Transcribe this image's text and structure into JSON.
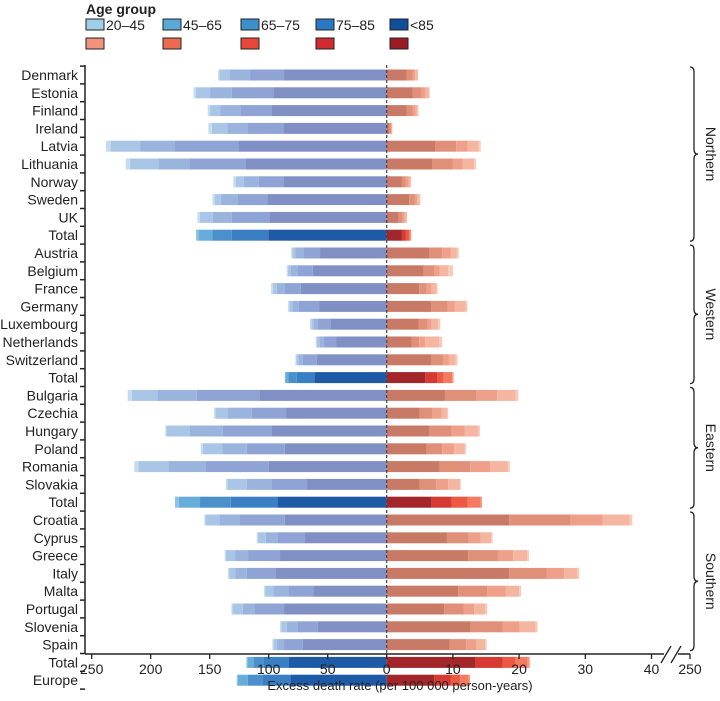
{
  "chart_data": {
    "type": "bar",
    "orientation": "horizontal-diverging-stacked",
    "legend": {
      "title": "Age group",
      "placement": "top-left",
      "entries": [
        "20–45",
        "45–65",
        "65–75",
        "75–85",
        "<85"
      ],
      "colors_blue": [
        "#9fcfe8",
        "#5aa8d8",
        "#3d8fcc",
        "#2a78c4",
        "#0d4f9b"
      ],
      "colors_red": [
        "#f1927a",
        "#ec6b50",
        "#e8473a",
        "#d22b2f",
        "#9b1c22"
      ]
    },
    "colors": {
      "left_country": [
        "#c4dcef",
        "#a9c6e6",
        "#9bb4dd",
        "#8fa4d4",
        "#8190c4"
      ],
      "left_total": [
        "#8cc3e6",
        "#68acd9",
        "#4b90ca",
        "#3a7fc4",
        "#1f5aa6"
      ],
      "right_country": [
        "#f7cbbb",
        "#f4b5a1",
        "#eea08a",
        "#e08f79",
        "#c97a66"
      ],
      "right_total": [
        "#f49a80",
        "#f27b62",
        "#ec5a44",
        "#d53a33",
        "#a3262a"
      ]
    },
    "segment_order": [
      "20–45",
      "45–65",
      "65–75",
      "75–85",
      "<85"
    ],
    "xlabel": "Excess death rate (per 100 000 person-years)",
    "left_axis": {
      "ticks": [
        250,
        200,
        150,
        100,
        50,
        0
      ],
      "xlim": [
        250,
        0
      ]
    },
    "right_axis": {
      "ticks": [
        0,
        10,
        20,
        30,
        40
      ],
      "xlim": [
        0,
        40
      ],
      "break_tick": 250
    },
    "grid": false,
    "groups": [
      {
        "name": "Northern",
        "from": 0,
        "to": 9
      },
      {
        "name": "Western",
        "from": 10,
        "to": 17
      },
      {
        "name": "Eastern",
        "from": 18,
        "to": 24
      },
      {
        "name": "Southern",
        "from": 25,
        "to": 32
      }
    ],
    "rows": [
      {
        "label": "Denmark",
        "total": false,
        "left": [
          1,
          9,
          17,
          28.8,
          87
        ],
        "right": [
          0.05,
          0.4,
          0.4,
          0.9,
          3.0
        ]
      },
      {
        "label": "Estonia",
        "total": false,
        "left": [
          2,
          12,
          18.3,
          35.4,
          96
        ],
        "right": [
          0.1,
          0.5,
          0.6,
          1.4,
          3.9
        ]
      },
      {
        "label": "Finland",
        "total": false,
        "left": [
          2,
          8.5,
          17,
          27,
          97.2
        ],
        "right": [
          0.1,
          0.3,
          0.5,
          0.9,
          3.0
        ]
      },
      {
        "label": "Ireland",
        "total": false,
        "left": [
          3,
          13,
          17,
          30.5,
          87.6
        ],
        "right": [
          0,
          0.1,
          0.1,
          0.25,
          0.4
        ]
      },
      {
        "label": "Latvia",
        "total": false,
        "left": [
          4,
          25,
          29.6,
          53.7,
          125.7
        ],
        "right": [
          0.3,
          1.7,
          1.7,
          3.2,
          7.3
        ]
      },
      {
        "label": "Lithuania",
        "total": false,
        "left": [
          3.7,
          24,
          26.3,
          47.4,
          119.8
        ],
        "right": [
          0.3,
          1.7,
          1.5,
          3.1,
          6.9
        ]
      },
      {
        "label": "Norway",
        "total": false,
        "left": [
          2,
          7,
          12.2,
          21.2,
          87.6
        ],
        "right": [
          0.1,
          0.3,
          0.4,
          0.6,
          2.3
        ]
      },
      {
        "label": "Sweden",
        "total": false,
        "left": [
          2,
          5,
          14,
          25.5,
          101.1
        ],
        "right": [
          0.1,
          0.4,
          0.4,
          0.8,
          3.4
        ]
      },
      {
        "label": "UK",
        "total": false,
        "left": [
          2,
          11,
          16,
          32,
          99.4
        ],
        "right": [
          0.1,
          0.3,
          0.3,
          0.6,
          1.8
        ]
      },
      {
        "label": "Total",
        "total": true,
        "left": [
          2,
          11.9,
          16.3,
          31.1,
          100.3
        ],
        "right": [
          0.05,
          0.25,
          0.5,
          0.6,
          2.3
        ]
      },
      {
        "label": "Austria",
        "total": false,
        "left": [
          1,
          2.4,
          7,
          14.1,
          56.5
        ],
        "right": [
          0.3,
          0.9,
          1.3,
          1.9,
          6.5
        ]
      },
      {
        "label": "Belgium",
        "total": false,
        "left": [
          1,
          2.3,
          5.7,
          13,
          62.7
        ],
        "right": [
          0.7,
          1.3,
          0.8,
          1.6,
          5.6
        ]
      },
      {
        "label": "France",
        "total": false,
        "left": [
          1.5,
          3.3,
          7,
          13.3,
          72.9
        ],
        "right": [
          0.2,
          0.7,
          0.8,
          1.1,
          4.9
        ]
      },
      {
        "label": "Germany",
        "total": false,
        "left": [
          1,
          2.7,
          5,
          17.6,
          57.3
        ],
        "right": [
          0.3,
          1.6,
          1.1,
          2.5,
          6.7
        ]
      },
      {
        "label": "Luxembourg",
        "total": false,
        "left": [
          1,
          1.9,
          3.3,
          11.6,
          47.2
        ],
        "right": [
          0.3,
          1.0,
          0.6,
          1.4,
          4.8
        ]
      },
      {
        "label": "Netherlands",
        "total": false,
        "left": [
          1,
          2.1,
          4,
          10.2,
          42.9
        ],
        "right": [
          0.5,
          2.1,
          0.9,
          1.1,
          3.8
        ]
      },
      {
        "label": "Switzerland",
        "total": false,
        "left": [
          1,
          1.5,
          3.7,
          11.9,
          59.3
        ],
        "right": [
          0.3,
          1.0,
          0.9,
          1.7,
          6.8
        ]
      },
      {
        "label": "Total",
        "total": true,
        "left": [
          0.5,
          2.5,
          7,
          15,
          61.3
        ],
        "right": [
          0.2,
          1.3,
          1.0,
          1.8,
          5.8
        ]
      },
      {
        "label": "Bulgaria",
        "total": false,
        "left": [
          3.5,
          21.6,
          33.4,
          53.1,
          107.9
        ],
        "right": [
          0.4,
          2.8,
          3.1,
          4.8,
          8.8
        ]
      },
      {
        "label": "Czechia",
        "total": false,
        "left": [
          1,
          10.3,
          20.6,
          29.1,
          85.3
        ],
        "right": [
          0.2,
          0.8,
          1.4,
          1.9,
          5.0
        ]
      },
      {
        "label": "Hungary",
        "total": false,
        "left": [
          1,
          19.9,
          27.7,
          41.8,
          97.2
        ],
        "right": [
          0.3,
          2.0,
          2.0,
          3.3,
          6.5
        ]
      },
      {
        "label": "Poland",
        "total": false,
        "left": [
          1.7,
          16.4,
          20.9,
          32.2,
          86.4
        ],
        "right": [
          0.2,
          1.6,
          1.8,
          2.4,
          6.0
        ]
      },
      {
        "label": "Romania",
        "total": false,
        "left": [
          3.4,
          25.5,
          31.3,
          53.7,
          100
        ],
        "right": [
          0.3,
          2.7,
          3.0,
          4.6,
          8.0
        ]
      },
      {
        "label": "Slovakia",
        "total": false,
        "left": [
          1.4,
          16.4,
          21.4,
          29.7,
          67.5
        ],
        "right": [
          0.2,
          1.7,
          1.8,
          2.5,
          5.0
        ]
      },
      {
        "label": "Total",
        "total": true,
        "left": [
          3.4,
          17.8,
          26,
          39.5,
          92.7
        ],
        "right": [
          0.2,
          2.0,
          2.4,
          3.0,
          6.8
        ]
      },
      {
        "label": "Croatia",
        "total": false,
        "left": [
          1,
          11.7,
          17.5,
          37.9,
          86.4
        ],
        "right": [
          0.4,
          4.1,
          4.8,
          9.3,
          18.5
        ]
      },
      {
        "label": "Cyprus",
        "total": false,
        "left": [
          1,
          6.7,
          9.8,
          23.5,
          69.2
        ],
        "right": [
          0.2,
          1.6,
          1.8,
          3.3,
          9.1
        ]
      },
      {
        "label": "Greece",
        "total": false,
        "left": [
          1,
          7.8,
          11,
          27.1,
          90.4
        ],
        "right": [
          0.3,
          2.1,
          2.3,
          4.5,
          12.3
        ]
      },
      {
        "label": "Italy",
        "total": false,
        "left": [
          1,
          5.3,
          9.6,
          24.2,
          94.4
        ],
        "right": [
          0.3,
          2.0,
          2.6,
          5.7,
          18.5
        ]
      },
      {
        "label": "Malta",
        "total": false,
        "left": [
          1,
          7,
          12.7,
          21.2,
          62.1
        ],
        "right": [
          0.3,
          2.0,
          2.8,
          4.4,
          10.8
        ]
      },
      {
        "label": "Portugal",
        "total": false,
        "left": [
          1,
          8.6,
          10.4,
          24.6,
          87
        ],
        "right": [
          0.3,
          1.7,
          1.6,
          2.9,
          8.7
        ]
      },
      {
        "label": "Slovenia",
        "total": false,
        "left": [
          1,
          4.7,
          9,
          17.2,
          58.5
        ],
        "right": [
          0.3,
          2.4,
          2.6,
          4.8,
          12.7
        ]
      },
      {
        "label": "Spain",
        "total": false,
        "left": [
          1,
          2.7,
          6.2,
          15.8,
          71.2
        ],
        "right": [
          0.2,
          1.3,
          1.6,
          2.5,
          9.5
        ]
      },
      {
        "label": "Total",
        "total": true,
        "left": [
          1,
          4.9,
          9,
          21.2,
          82.8
        ],
        "right": [
          0.3,
          1.8,
          2.0,
          4.1,
          13.4
        ]
      },
      {
        "label": "Europe",
        "total": true,
        "left": [
          1,
          8.3,
          12.4,
          24.3,
          81.1
        ],
        "right": [
          0.2,
          1.3,
          1.4,
          2.5,
          7.2
        ]
      }
    ]
  }
}
